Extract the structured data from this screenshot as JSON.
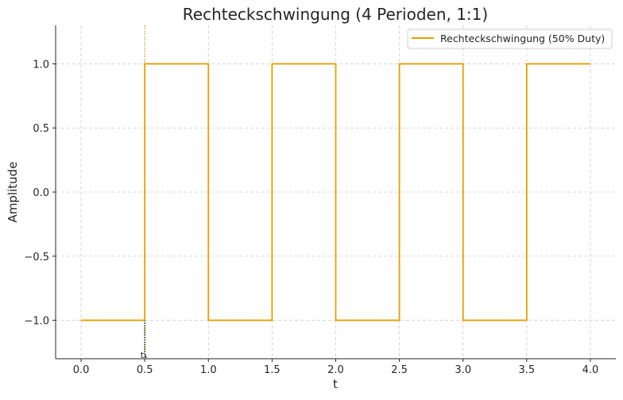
{
  "chart_data": {
    "type": "line",
    "title": "Rechteckschwingung (4 Perioden, 1:1)",
    "xlabel": "t",
    "ylabel": "Amplitude",
    "xlim": [
      -0.2,
      4.2
    ],
    "ylim": [
      -1.3,
      1.3
    ],
    "xticks": [
      0.0,
      0.5,
      1.0,
      1.5,
      2.0,
      2.5,
      3.0,
      3.5,
      4.0
    ],
    "xtick_labels": [
      "0.0",
      "0.5",
      "1.0",
      "1.5",
      "2.0",
      "2.5",
      "3.0",
      "3.5",
      "4.0"
    ],
    "yticks": [
      -1.0,
      -0.5,
      0.0,
      0.5,
      1.0
    ],
    "ytick_labels": [
      "−1.0",
      "−0.5",
      "0.0",
      "0.5",
      "1.0"
    ],
    "grid": true,
    "legend": "top-right",
    "series": [
      {
        "name": "Rechteckschwingung (50% Duty)",
        "color": "#E69F00",
        "step": true,
        "x": [
          0.0,
          0.5,
          0.5,
          1.0,
          1.0,
          1.5,
          1.5,
          2.0,
          2.0,
          2.5,
          2.5,
          3.0,
          3.0,
          3.5,
          3.5,
          4.0
        ],
        "y": [
          -1,
          -1,
          1,
          1,
          -1,
          -1,
          1,
          1,
          -1,
          -1,
          1,
          1,
          -1,
          -1,
          1,
          1
        ]
      }
    ],
    "annotations": [
      {
        "type": "vline",
        "x": 0.5,
        "style": "dotted",
        "color": "#E69F00"
      },
      {
        "type": "vline-segment",
        "x": 0.5,
        "y_from": -1.0,
        "y_to": -1.3,
        "style": "dotted",
        "color": "#000000"
      },
      {
        "type": "text",
        "x": 0.5,
        "y": -1.3,
        "text": "t₁"
      }
    ]
  }
}
